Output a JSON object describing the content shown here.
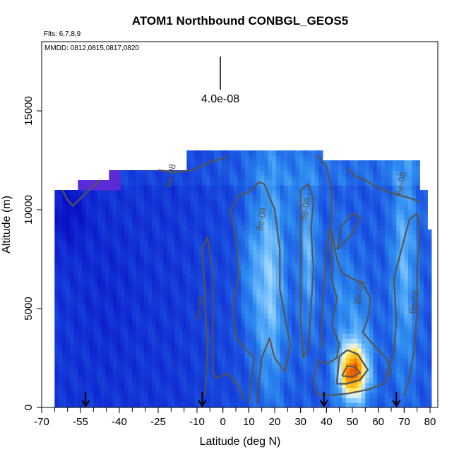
{
  "chart_data": {
    "type": "heatmap",
    "title": "ATOM1 Northbound CONBGL_GEOS5",
    "flights_note": "Flts: 6,7,8,9",
    "dates_note": "MMDD: 0812,0815,0817,0820",
    "xlabel": "Latitude (deg N)",
    "ylabel": "Altitude (m)",
    "xlim": [
      -70,
      83
    ],
    "ylim": [
      0,
      18500
    ],
    "x_ticks": [
      -70,
      -55,
      -40,
      -25,
      -10,
      0,
      10,
      20,
      30,
      40,
      50,
      60,
      70,
      80
    ],
    "x_tick_labels": [
      "-70",
      "-55",
      "-40",
      "-25",
      "-10",
      "0",
      "10",
      "20",
      "30",
      "40",
      "50",
      "60",
      "70",
      "80"
    ],
    "y_ticks": [
      0,
      5000,
      10000,
      15000
    ],
    "y_tick_labels": [
      "0",
      "5000",
      "10000",
      "15000"
    ],
    "scale_bar_label": "4.0e-08",
    "flight_arrow_latitudes": [
      -53,
      -8,
      39,
      67
    ],
    "contour_labels": [
      {
        "text": "6e-08",
        "x": -19,
        "y": 11700
      },
      {
        "text": "6e-08",
        "x": -8,
        "y": 5000
      },
      {
        "text": "6e-08",
        "x": 70,
        "y": 11300
      },
      {
        "text": "8e-08",
        "x": 16,
        "y": 9500
      },
      {
        "text": "8e-08",
        "x": 33,
        "y": 10000
      },
      {
        "text": "8e-08",
        "x": 54,
        "y": 5800
      },
      {
        "text": "8e-08",
        "x": 75,
        "y": 5300
      }
    ],
    "colors": {
      "low": "#0a12c8",
      "mid": "#2d8cf0",
      "pale": "#c8e8ff",
      "high": "#ffe040",
      "peak": "#cc1010",
      "contour": "#555555"
    },
    "grid": false,
    "legend": "none"
  }
}
